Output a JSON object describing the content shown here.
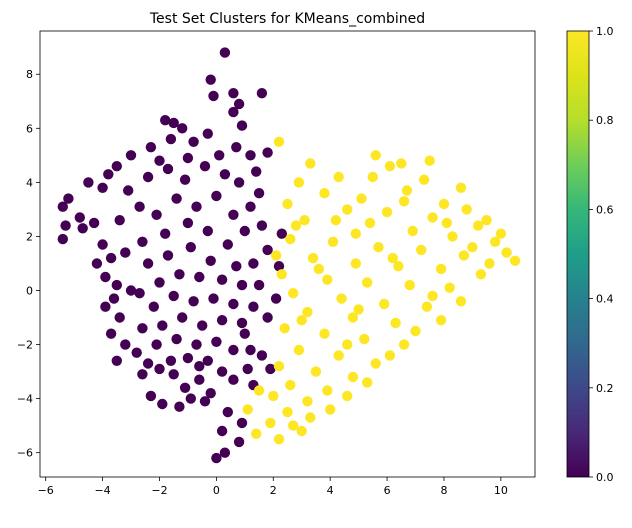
{
  "chart_data": {
    "type": "scatter",
    "title": "Test Set Clusters for KMeans_combined",
    "xlabel": "",
    "ylabel": "",
    "xlim": [
      -6.2,
      11.2
    ],
    "ylim": [
      -6.9,
      9.6
    ],
    "xticks": [
      -6,
      -4,
      -2,
      0,
      2,
      4,
      6,
      8,
      10
    ],
    "yticks": [
      -6,
      -4,
      -2,
      0,
      2,
      4,
      6,
      8
    ],
    "grid": false,
    "colormap": "viridis",
    "colorbar": {
      "range": [
        0.0,
        1.0
      ],
      "ticks": [
        "0.0",
        "0.2",
        "0.4",
        "0.6",
        "0.8",
        "1.0"
      ]
    },
    "series": [
      {
        "cluster_value": 0,
        "color": "#440154",
        "shape": "dense cloud spanning x -5.4 to 2.6, y -6.2 to 8.8",
        "points": [
          [
            0.3,
            8.8
          ],
          [
            -0.2,
            7.8
          ],
          [
            1.6,
            7.3
          ],
          [
            0.6,
            7.3
          ],
          [
            -0.1,
            7.2
          ],
          [
            0.8,
            6.9
          ],
          [
            0.6,
            6.6
          ],
          [
            -1.8,
            6.3
          ],
          [
            -1.5,
            6.2
          ],
          [
            -1.2,
            6.0
          ],
          [
            -0.3,
            5.8
          ],
          [
            0.9,
            6.1
          ],
          [
            -0.8,
            5.5
          ],
          [
            0.7,
            5.3
          ],
          [
            1.8,
            5.1
          ],
          [
            1.2,
            5.0
          ],
          [
            -2.3,
            5.3
          ],
          [
            -3.0,
            5.0
          ],
          [
            -3.8,
            4.3
          ],
          [
            -4.5,
            4.0
          ],
          [
            -4.0,
            3.8
          ],
          [
            -5.2,
            3.4
          ],
          [
            -5.4,
            3.1
          ],
          [
            -4.8,
            2.7
          ],
          [
            -4.3,
            2.5
          ],
          [
            -5.3,
            2.4
          ],
          [
            -4.7,
            2.3
          ],
          [
            -5.4,
            1.9
          ],
          [
            -4.0,
            1.7
          ],
          [
            -3.7,
            1.2
          ],
          [
            -4.2,
            1.0
          ],
          [
            -3.9,
            0.5
          ],
          [
            -3.5,
            0.2
          ],
          [
            -3.0,
            0.0
          ],
          [
            -3.6,
            -0.3
          ],
          [
            -3.9,
            -0.6
          ],
          [
            -3.4,
            -1.0
          ],
          [
            -3.7,
            -1.6
          ],
          [
            -3.2,
            -2.0
          ],
          [
            -3.5,
            -2.6
          ],
          [
            -2.8,
            -2.3
          ],
          [
            -2.4,
            -2.7
          ],
          [
            -2.6,
            -3.1
          ],
          [
            -2.0,
            -2.9
          ],
          [
            -1.5,
            -3.1
          ],
          [
            -1.1,
            -3.6
          ],
          [
            -2.3,
            -3.9
          ],
          [
            -1.9,
            -4.2
          ],
          [
            -1.3,
            -4.3
          ],
          [
            -0.9,
            -4.0
          ],
          [
            -0.4,
            -4.1
          ],
          [
            -0.2,
            -3.8
          ],
          [
            0.4,
            -4.5
          ],
          [
            0.2,
            -5.2
          ],
          [
            0.8,
            -5.6
          ],
          [
            0.0,
            -6.2
          ],
          [
            0.3,
            -6.0
          ],
          [
            -0.6,
            -2.8
          ],
          [
            0.6,
            -3.3
          ],
          [
            1.1,
            -2.9
          ],
          [
            1.6,
            -2.4
          ],
          [
            1.9,
            -2.9
          ],
          [
            1.0,
            -1.6
          ],
          [
            1.8,
            -1.0
          ],
          [
            2.1,
            -0.3
          ],
          [
            1.5,
            0.2
          ],
          [
            2.2,
            0.9
          ],
          [
            1.8,
            1.5
          ],
          [
            2.3,
            2.1
          ],
          [
            1.6,
            2.4
          ],
          [
            1.2,
            3.1
          ],
          [
            1.5,
            3.6
          ],
          [
            0.8,
            4.0
          ],
          [
            0.3,
            4.3
          ],
          [
            -0.4,
            4.6
          ],
          [
            -1.0,
            4.9
          ],
          [
            -1.7,
            4.5
          ],
          [
            -2.4,
            4.2
          ],
          [
            -3.1,
            3.7
          ],
          [
            -2.7,
            3.1
          ],
          [
            -3.4,
            2.6
          ],
          [
            -2.1,
            2.8
          ],
          [
            -1.4,
            3.4
          ],
          [
            -0.7,
            3.1
          ],
          [
            0.0,
            3.5
          ],
          [
            0.6,
            2.8
          ],
          [
            1.0,
            2.2
          ],
          [
            0.4,
            1.7
          ],
          [
            -0.3,
            2.2
          ],
          [
            -1.0,
            2.5
          ],
          [
            -1.8,
            2.1
          ],
          [
            -2.6,
            1.8
          ],
          [
            -3.2,
            1.4
          ],
          [
            -2.4,
            1.0
          ],
          [
            -1.7,
            1.3
          ],
          [
            -0.9,
            1.6
          ],
          [
            -0.2,
            1.1
          ],
          [
            0.7,
            0.9
          ],
          [
            1.3,
            1.0
          ],
          [
            0.9,
            0.2
          ],
          [
            0.2,
            0.4
          ],
          [
            -0.6,
            0.5
          ],
          [
            -1.3,
            0.6
          ],
          [
            -2.0,
            0.3
          ],
          [
            -2.7,
            -0.1
          ],
          [
            -2.2,
            -0.6
          ],
          [
            -1.5,
            -0.2
          ],
          [
            -0.8,
            -0.4
          ],
          [
            -0.1,
            -0.3
          ],
          [
            0.6,
            -0.5
          ],
          [
            1.3,
            -0.6
          ],
          [
            0.9,
            -1.2
          ],
          [
            0.2,
            -1.1
          ],
          [
            -0.5,
            -1.3
          ],
          [
            -1.2,
            -1.0
          ],
          [
            -1.9,
            -1.3
          ],
          [
            -2.6,
            -1.4
          ],
          [
            -2.1,
            -2.0
          ],
          [
            -1.4,
            -1.8
          ],
          [
            -0.7,
            -2.0
          ],
          [
            0.0,
            -1.9
          ],
          [
            0.6,
            -2.2
          ],
          [
            1.2,
            -2.2
          ],
          [
            -0.3,
            -2.6
          ],
          [
            -1.0,
            -2.5
          ],
          [
            -1.6,
            -2.6
          ],
          [
            0.2,
            -3.0
          ],
          [
            -0.6,
            -3.3
          ],
          [
            1.3,
            -3.5
          ],
          [
            0.9,
            -4.9
          ],
          [
            -1.6,
            5.6
          ],
          [
            -2.0,
            4.8
          ],
          [
            -1.1,
            4.1
          ],
          [
            0.1,
            5.0
          ],
          [
            1.4,
            4.4
          ],
          [
            -3.5,
            4.6
          ]
        ]
      },
      {
        "cluster_value": 1,
        "color": "#fde725",
        "shape": "wide cloud spanning x 1.1 to 10.5, y -5.5 to 5.5",
        "points": [
          [
            2.2,
            5.5
          ],
          [
            5.6,
            5.0
          ],
          [
            6.5,
            4.7
          ],
          [
            7.5,
            4.8
          ],
          [
            6.1,
            4.6
          ],
          [
            3.3,
            4.7
          ],
          [
            4.3,
            4.2
          ],
          [
            2.9,
            4.0
          ],
          [
            7.3,
            4.1
          ],
          [
            8.6,
            3.8
          ],
          [
            3.8,
            3.6
          ],
          [
            5.1,
            3.4
          ],
          [
            6.6,
            3.3
          ],
          [
            8.0,
            3.2
          ],
          [
            8.8,
            3.0
          ],
          [
            2.5,
            3.2
          ],
          [
            4.6,
            3.0
          ],
          [
            6.0,
            2.9
          ],
          [
            7.6,
            2.7
          ],
          [
            9.5,
            2.6
          ],
          [
            10.0,
            2.1
          ],
          [
            9.2,
            2.4
          ],
          [
            3.1,
            2.6
          ],
          [
            5.4,
            2.5
          ],
          [
            6.9,
            2.2
          ],
          [
            8.3,
            2.0
          ],
          [
            9.8,
            1.8
          ],
          [
            10.5,
            1.1
          ],
          [
            10.2,
            1.4
          ],
          [
            9.6,
            1.0
          ],
          [
            2.6,
            1.9
          ],
          [
            4.1,
            1.8
          ],
          [
            5.7,
            1.6
          ],
          [
            7.2,
            1.5
          ],
          [
            8.7,
            1.3
          ],
          [
            9.3,
            0.6
          ],
          [
            3.4,
            1.2
          ],
          [
            4.9,
            1.0
          ],
          [
            6.4,
            0.9
          ],
          [
            7.9,
            0.8
          ],
          [
            2.3,
            0.6
          ],
          [
            3.9,
            0.4
          ],
          [
            5.3,
            0.3
          ],
          [
            6.8,
            0.2
          ],
          [
            8.2,
            0.1
          ],
          [
            8.6,
            -0.4
          ],
          [
            2.7,
            -0.1
          ],
          [
            4.4,
            -0.3
          ],
          [
            5.9,
            -0.5
          ],
          [
            7.4,
            -0.6
          ],
          [
            7.9,
            -1.1
          ],
          [
            3.2,
            -0.8
          ],
          [
            4.8,
            -1.0
          ],
          [
            6.3,
            -1.2
          ],
          [
            7.0,
            -1.5
          ],
          [
            2.4,
            -1.4
          ],
          [
            3.8,
            -1.6
          ],
          [
            5.2,
            -1.8
          ],
          [
            6.6,
            -2.0
          ],
          [
            6.1,
            -2.4
          ],
          [
            2.9,
            -2.2
          ],
          [
            4.3,
            -2.4
          ],
          [
            5.6,
            -2.7
          ],
          [
            2.2,
            -2.8
          ],
          [
            3.5,
            -3.0
          ],
          [
            4.8,
            -3.2
          ],
          [
            5.3,
            -3.4
          ],
          [
            2.6,
            -3.5
          ],
          [
            3.9,
            -3.7
          ],
          [
            4.6,
            -3.9
          ],
          [
            2.0,
            -3.9
          ],
          [
            3.2,
            -4.1
          ],
          [
            4.0,
            -4.4
          ],
          [
            2.5,
            -4.5
          ],
          [
            3.3,
            -4.7
          ],
          [
            1.9,
            -4.9
          ],
          [
            2.7,
            -5.0
          ],
          [
            1.4,
            -5.3
          ],
          [
            2.2,
            -5.5
          ],
          [
            1.1,
            -4.4
          ],
          [
            1.5,
            -3.7
          ],
          [
            3.0,
            -5.2
          ],
          [
            4.9,
            2.1
          ],
          [
            6.2,
            1.2
          ],
          [
            7.6,
            -0.2
          ],
          [
            9.0,
            1.6
          ],
          [
            8.1,
            2.5
          ],
          [
            5.0,
            -0.7
          ],
          [
            3.6,
            0.8
          ],
          [
            2.1,
            1.3
          ],
          [
            2.8,
            2.4
          ],
          [
            4.2,
            2.6
          ],
          [
            6.7,
            3.7
          ],
          [
            5.5,
            4.2
          ],
          [
            3.0,
            -1.1
          ],
          [
            4.6,
            -2.0
          ]
        ]
      }
    ]
  }
}
